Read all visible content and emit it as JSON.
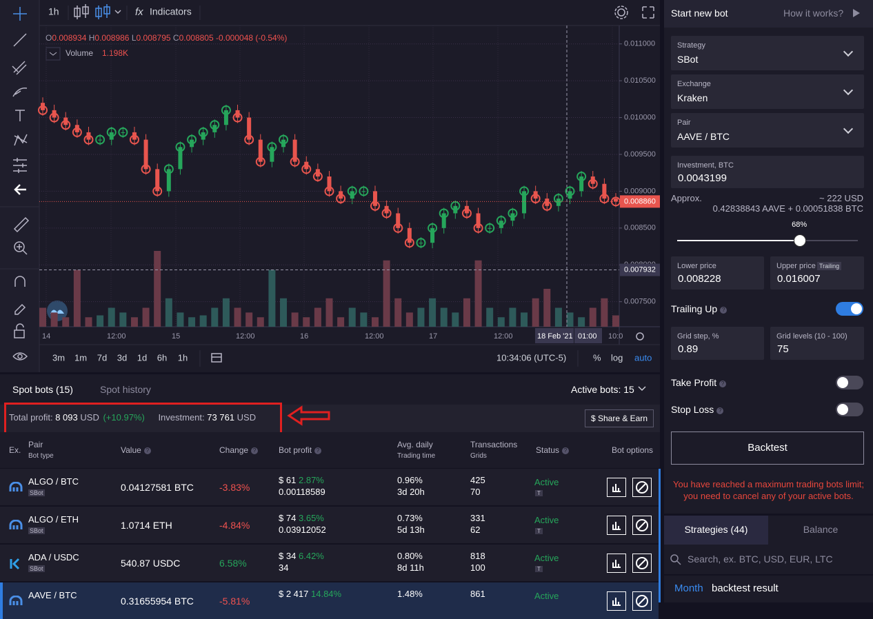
{
  "toolbar": {
    "interval": "1h",
    "indicators": "Indicators"
  },
  "chart": {
    "legend": [
      {
        "label": "O",
        "value": "0.008934"
      },
      {
        "label": "H",
        "value": "0.008986"
      },
      {
        "label": "L",
        "value": "0.008795"
      },
      {
        "label": "C",
        "value": "0.008805"
      }
    ],
    "change": "-0.000048 (-0.54%)",
    "volume_label": "Volume",
    "volume_value": "1.198K",
    "ylim": [
      0.00716,
      0.01125
    ],
    "yticks": [
      {
        "value": 0.011,
        "label": "0.011000"
      },
      {
        "value": 0.0105,
        "label": "0.010500"
      },
      {
        "value": 0.01,
        "label": "0.010000"
      },
      {
        "value": 0.0095,
        "label": "0.009500"
      },
      {
        "value": 0.009,
        "label": "0.009000"
      },
      {
        "value": 0.0085,
        "label": "0.008500"
      },
      {
        "value": 0.008,
        "label": "0.008000"
      },
      {
        "value": 0.0075,
        "label": "0.007500"
      }
    ],
    "last_price": {
      "value": 0.00886,
      "label": "0.008860"
    },
    "cursor_price": {
      "value": 0.007932,
      "label": "0.007932"
    },
    "xlabels": [
      "14",
      "12:00",
      "15",
      "12:00",
      "16",
      "12:00",
      "17",
      "12:00",
      "18 Feb '21",
      "01:00",
      "10:0"
    ],
    "open": [
      0.0102,
      0.0101,
      0.01,
      0.0099,
      0.0098,
      0.0097,
      0.0097,
      0.0098,
      0.0098,
      0.0097,
      0.0093,
      0.009,
      0.0093,
      0.0096,
      0.0097,
      0.0098,
      0.0099,
      0.0101,
      0.01,
      0.0097,
      0.0094,
      0.0096,
      0.0097,
      0.0094,
      0.0093,
      0.0092,
      0.009,
      0.0089,
      0.009,
      0.009,
      0.0088,
      0.0087,
      0.0085,
      0.0083,
      0.0083,
      0.0085,
      0.0087,
      0.0088,
      0.0087,
      0.0085,
      0.0085,
      0.0086,
      0.0087,
      0.009,
      0.0089,
      0.0088,
      0.0089,
      0.009,
      0.0092,
      0.0091,
      0.0089
    ],
    "close": [
      0.0101,
      0.01,
      0.0099,
      0.0098,
      0.0097,
      0.0097,
      0.0098,
      0.0098,
      0.0097,
      0.0093,
      0.009,
      0.0093,
      0.0096,
      0.0097,
      0.0098,
      0.0099,
      0.0101,
      0.01,
      0.0097,
      0.0094,
      0.0096,
      0.0097,
      0.0094,
      0.0093,
      0.0092,
      0.009,
      0.0089,
      0.009,
      0.009,
      0.0088,
      0.0087,
      0.0085,
      0.0083,
      0.0083,
      0.0085,
      0.0087,
      0.0088,
      0.0087,
      0.0085,
      0.0085,
      0.0086,
      0.0087,
      0.009,
      0.0089,
      0.0088,
      0.0089,
      0.009,
      0.0092,
      0.0091,
      0.0089,
      0.00886
    ],
    "volume": [
      2,
      1.5,
      1,
      6,
      1,
      1.2,
      2,
      1.5,
      1,
      2,
      8,
      3,
      1.5,
      1,
      1.2,
      2,
      3,
      2,
      1.5,
      1,
      6,
      3,
      1.5,
      1,
      2,
      3,
      1,
      2,
      1.5,
      1,
      7,
      3,
      1.5,
      2,
      3,
      2,
      1.5,
      3,
      7,
      2,
      1,
      2,
      1.5,
      3,
      4,
      2,
      1.5,
      1,
      2,
      3,
      1.198
    ]
  },
  "timebar": {
    "ranges": [
      "3m",
      "1m",
      "7d",
      "3d",
      "1d",
      "6h",
      "1h"
    ],
    "clock": "10:34:06 (UTC-5)",
    "percent": "%",
    "log": "log",
    "auto": "auto"
  },
  "bots": {
    "tabs": [
      "Spot bots (15)",
      "Spot history"
    ],
    "active": "Active bots: 15",
    "summary": {
      "profit_label": "Total profit:",
      "profit": "8 093",
      "profit_unit": "USD",
      "profit_pct": "(+10.97%)",
      "investment_label": "Investment:",
      "investment": "73 761",
      "investment_unit": "USD",
      "share": "$ Share & Earn"
    },
    "headers": {
      "ex": "Ex.",
      "pair": "Pair",
      "bot_type": "Bot type",
      "value": "Value",
      "change": "Change",
      "profit": "Bot profit",
      "avg": "Avg. daily",
      "time": "Trading time",
      "tx": "Transactions",
      "grids": "Grids",
      "status": "Status",
      "options": "Bot options"
    },
    "rows": [
      {
        "pair": "ALGO / BTC",
        "type": "SBot",
        "value": "0.04127581 BTC",
        "change": "-3.83%",
        "profit": "$ 61",
        "profit_pct": "2.87%",
        "profit_sub": "0.00118589",
        "avg": "0.96%",
        "time": "3d 20h",
        "tx": "425",
        "grids": "70",
        "status": "Active",
        "mode": "T"
      },
      {
        "pair": "ALGO / ETH",
        "type": "SBot",
        "value": "1.0714 ETH",
        "change": "-4.84%",
        "profit": "$ 74",
        "profit_pct": "3.65%",
        "profit_sub": "0.03912052",
        "avg": "0.73%",
        "time": "5d 13h",
        "tx": "331",
        "grids": "62",
        "status": "Active",
        "mode": "T"
      },
      {
        "pair": "ADA / USDC",
        "type": "SBot",
        "value": "540.87 USDC",
        "change": "6.58%",
        "profit": "$ 34",
        "profit_pct": "6.42%",
        "profit_sub": "34",
        "avg": "0.80%",
        "time": "8d 11h",
        "tx": "818",
        "grids": "100",
        "status": "Active",
        "mode": "T"
      },
      {
        "pair": "AAVE / BTC",
        "value": "0.31655954 BTC",
        "change": "-5.81%",
        "profit": "$ 2 417",
        "profit_pct": "14.84%",
        "avg": "1.48%",
        "tx": "861",
        "status": "Active"
      }
    ]
  },
  "panel": {
    "title": "Start new bot",
    "how": "How it works?",
    "fields": [
      {
        "label": "Strategy",
        "value": "SBot"
      },
      {
        "label": "Exchange",
        "value": "Kraken"
      },
      {
        "label": "Pair",
        "value": "AAVE / BTC"
      }
    ],
    "investment": {
      "label": "Investment, BTC",
      "value": "0.0043199"
    },
    "approx": {
      "label": "Approx.",
      "usd": "~ 222 USD",
      "detail": "0.42838843 AAVE + 0.00051838 BTC"
    },
    "slider": {
      "value": 68,
      "label": "68%"
    },
    "lower": {
      "label": "Lower price",
      "value": "0.008228"
    },
    "upper": {
      "label": "Upper price",
      "badge": "Trailing",
      "value": "0.016007"
    },
    "trailing_up": "Trailing Up",
    "grid_step": {
      "label": "Grid step, %",
      "value": "0.89"
    },
    "grid_levels": {
      "label": "Grid levels (10 - 100)",
      "value": "75"
    },
    "take_profit": "Take Profit",
    "stop_loss": "Stop Loss",
    "backtest": "Backtest",
    "warning": [
      "You have reached a maximum trading bots limit;",
      "you need to cancel any of your active bots."
    ],
    "tabs": [
      "Strategies (44)",
      "Balance"
    ],
    "search": "Search, ex. BTC, USD, EUR, LTC",
    "period": "Month",
    "result": "backtest result"
  }
}
